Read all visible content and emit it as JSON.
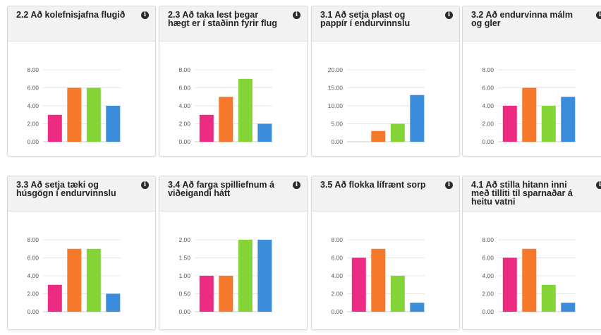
{
  "colors": {
    "pink": "#ee2b82",
    "orange": "#f6792b",
    "green": "#84d337",
    "blue": "#3b8ddb"
  },
  "info_icon": "info-icon",
  "chart_data": [
    {
      "type": "bar",
      "title": "2.2 Að kolefnisjafna flugið",
      "ylim": [
        0,
        8
      ],
      "yticks": [
        "0.00",
        "2.00",
        "4.00",
        "6.00",
        "8.00"
      ],
      "categories": [
        "1",
        "2",
        "3",
        "4"
      ],
      "values": [
        3,
        6,
        6,
        4
      ]
    },
    {
      "type": "bar",
      "title": "2.3 Að taka lest þegar hægt er í staðinn fyrir flug",
      "ylim": [
        0,
        8
      ],
      "yticks": [
        "0.00",
        "2.00",
        "4.00",
        "6.00",
        "8.00"
      ],
      "categories": [
        "1",
        "2",
        "3",
        "4"
      ],
      "values": [
        3,
        5,
        7,
        2
      ]
    },
    {
      "type": "bar",
      "title": "3.1 Að setja plast og pappír í endurvinnslu",
      "ylim": [
        0,
        20
      ],
      "yticks": [
        "0.00",
        "5.00",
        "10.00",
        "15.00",
        "20.00"
      ],
      "categories": [
        "1",
        "2",
        "3",
        "4"
      ],
      "values": [
        0,
        3,
        5,
        13
      ]
    },
    {
      "type": "bar",
      "title": "3.2 Að endurvinna málm og gler",
      "ylim": [
        0,
        8
      ],
      "yticks": [
        "0.00",
        "2.00",
        "4.00",
        "6.00",
        "8.00"
      ],
      "categories": [
        "1",
        "2",
        "3",
        "4"
      ],
      "values": [
        4,
        6,
        4,
        5
      ]
    },
    {
      "type": "bar",
      "title": "3.3 Að setja tæki og húsgögn í endurvinnslu",
      "ylim": [
        0,
        8
      ],
      "yticks": [
        "0.00",
        "2.00",
        "4.00",
        "6.00",
        "8.00"
      ],
      "categories": [
        "1",
        "2",
        "3",
        "4"
      ],
      "values": [
        3,
        7,
        7,
        2
      ]
    },
    {
      "type": "bar",
      "title": "3.4 Að farga spilliefnum á viðeigandi hátt",
      "ylim": [
        0,
        2
      ],
      "yticks": [
        "0.00",
        "0.50",
        "1.00",
        "1.50",
        "2.00"
      ],
      "categories": [
        "1",
        "2",
        "3",
        "4"
      ],
      "values": [
        1,
        1,
        2,
        2
      ]
    },
    {
      "type": "bar",
      "title": "3.5 Að flokka lífrænt sorp",
      "ylim": [
        0,
        8
      ],
      "yticks": [
        "0.00",
        "2.00",
        "4.00",
        "6.00",
        "8.00"
      ],
      "categories": [
        "1",
        "2",
        "3",
        "4"
      ],
      "values": [
        6,
        7,
        4,
        1
      ]
    },
    {
      "type": "bar",
      "title": "4.1 Að stilla hitann inni með tilliti til sparnaðar á heitu vatni",
      "ylim": [
        0,
        8
      ],
      "yticks": [
        "0.00",
        "2.00",
        "4.00",
        "6.00",
        "8.00"
      ],
      "categories": [
        "1",
        "2",
        "3",
        "4"
      ],
      "values": [
        6,
        7,
        3,
        1
      ]
    }
  ]
}
